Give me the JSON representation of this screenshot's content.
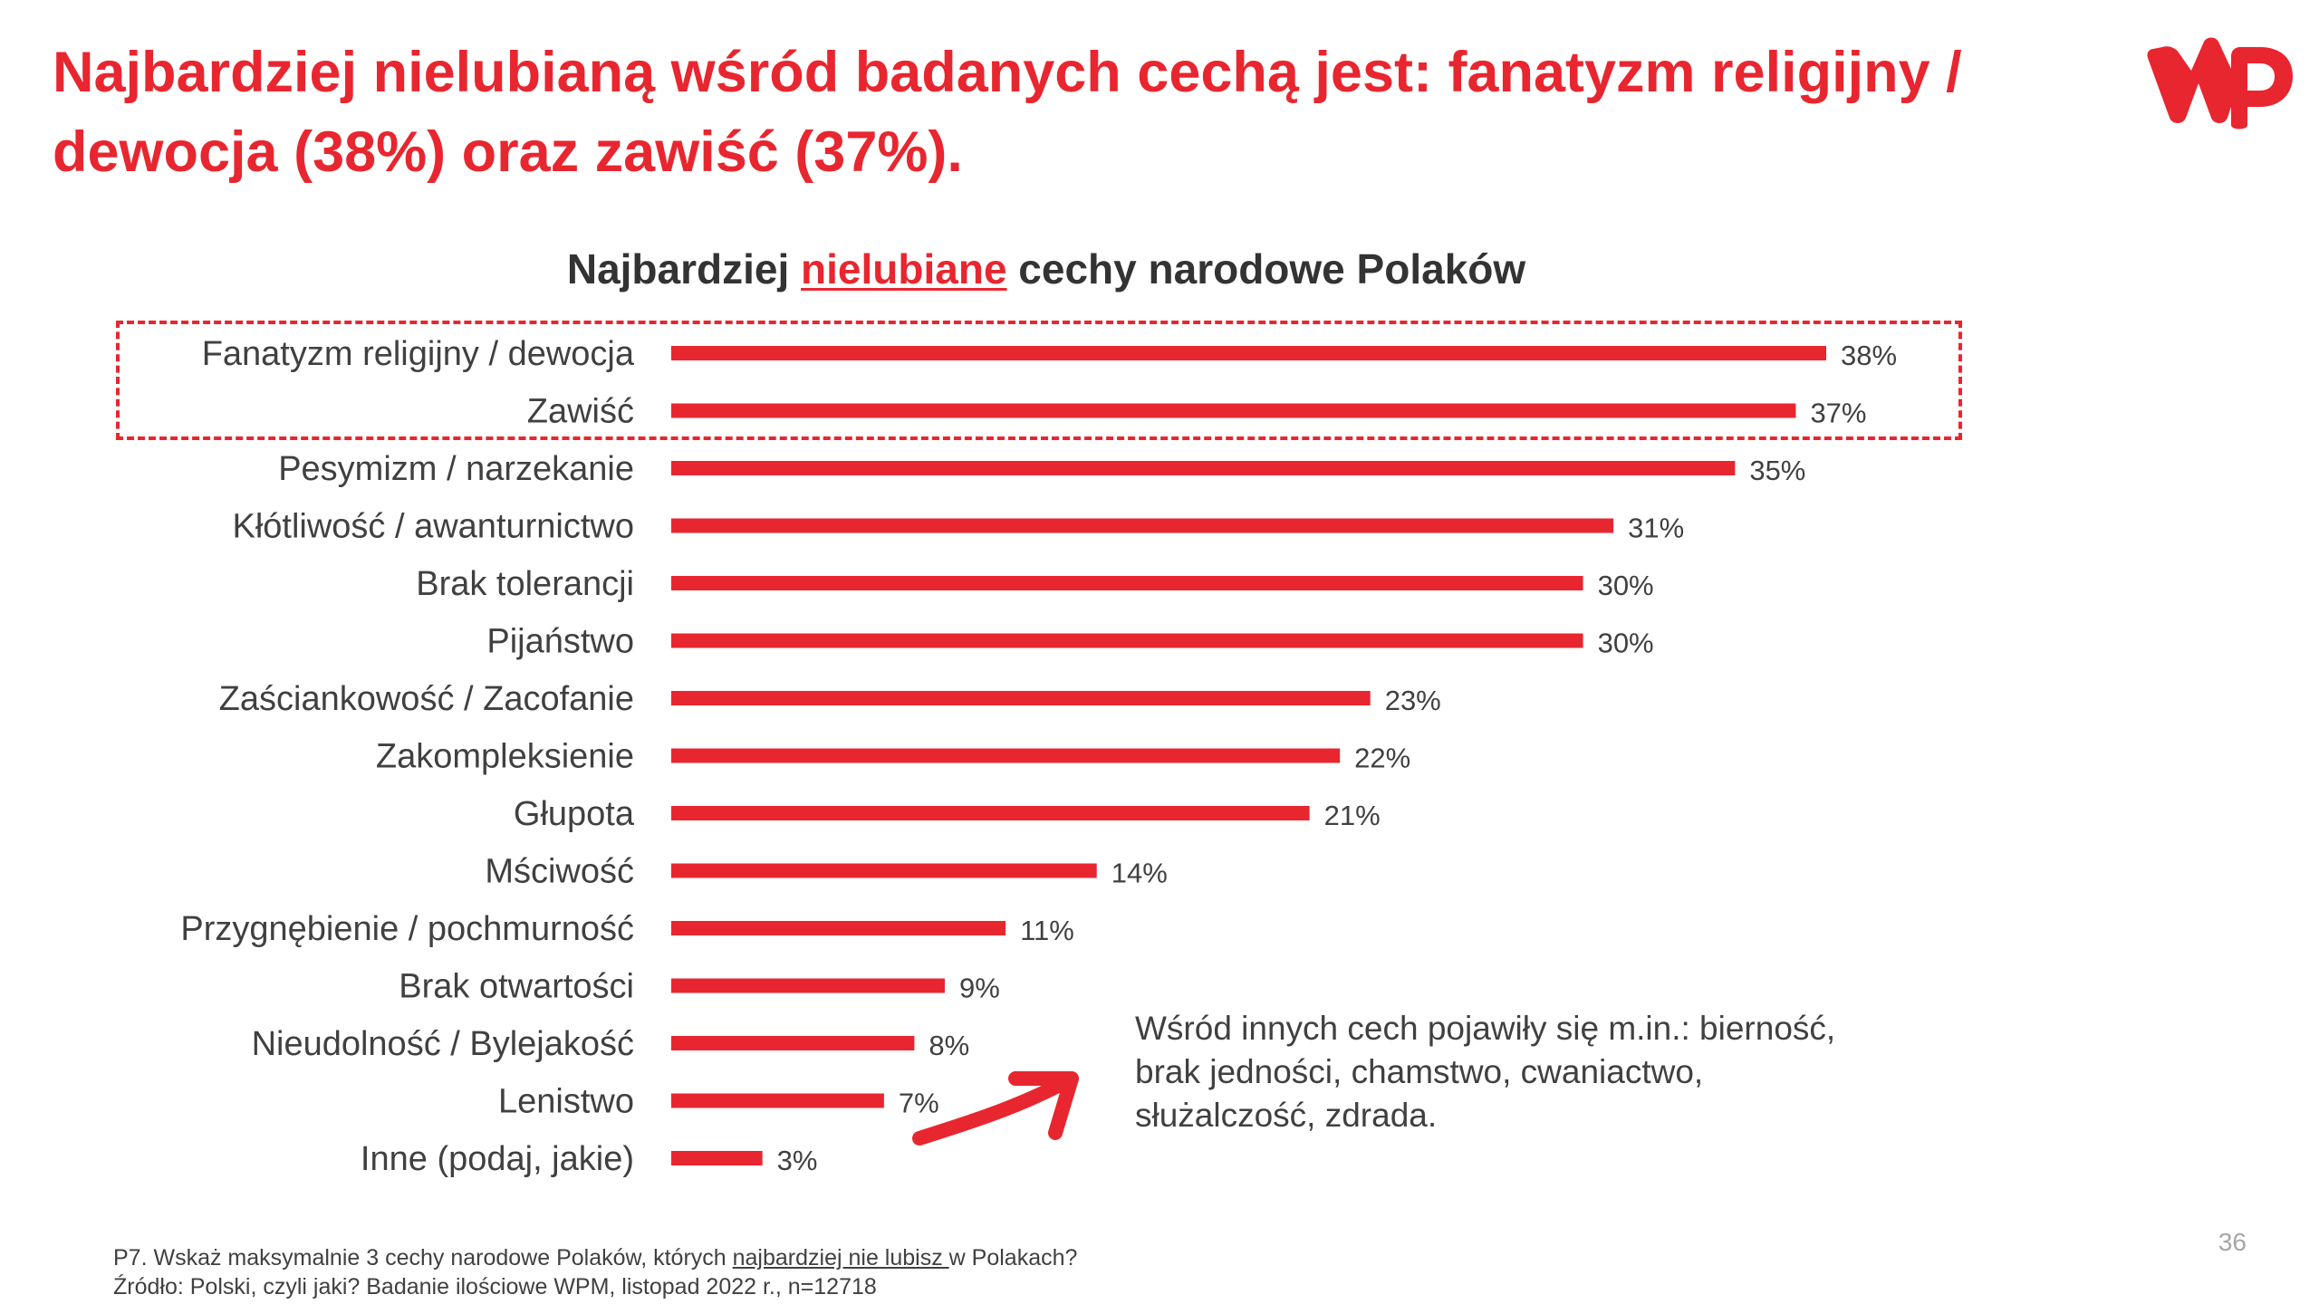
{
  "headline": {
    "line1": "Najbardziej nielubianą wśród badanych cechą jest: fanatyzm religijny /",
    "line2": "dewocja (38%) oraz zawiść (37%)."
  },
  "logo": {
    "text": "WP"
  },
  "colors": {
    "accent": "#e8262f",
    "text": "#404040",
    "muted": "#a6a6a6"
  },
  "chart_data": {
    "type": "bar",
    "orientation": "horizontal",
    "title_prefix": "Najbardziej ",
    "title_highlight": "nielubiane",
    "title_suffix": " cechy narodowe Polaków",
    "categories": [
      "Fanatyzm religijny / dewocja",
      "Zawiść",
      "Pesymizm / narzekanie",
      "Kłótliwość / awanturnictwo",
      "Brak tolerancji",
      "Pijaństwo",
      "Zaściankowość / Zacofanie",
      "Zakompleksienie",
      "Głupota",
      "Mściwość",
      "Przygnębienie / pochmurność",
      "Brak otwartości",
      "Nieudolność / Bylejakość",
      "Lenistwo",
      "Inne (podaj, jakie)"
    ],
    "values": [
      38,
      37,
      35,
      31,
      30,
      30,
      23,
      22,
      21,
      14,
      11,
      9,
      8,
      7,
      3
    ],
    "value_labels": [
      "38%",
      "37%",
      "35%",
      "31%",
      "30%",
      "30%",
      "23%",
      "22%",
      "21%",
      "14%",
      "11%",
      "9%",
      "8%",
      "7%",
      "3%"
    ],
    "highlighted": [
      "Fanatyzm religijny / dewocja",
      "Zawiść"
    ],
    "xlim": [
      0,
      38
    ],
    "grid": false,
    "legend": "none"
  },
  "note": {
    "lines": [
      "Wśród innych cech pojawiły się m.in.: bierność,",
      "brak jedności, chamstwo, cwaniactwo,",
      "służalczość, zdrada."
    ]
  },
  "footer": {
    "q_prefix": "P7. Wskaż maksymalnie 3 cechy narodowe Polaków, których ",
    "q_underlined": "najbardziej nie lubisz ",
    "q_suffix": "w Polakach?",
    "source": "Źródło: Polski, czyli jaki? Badanie ilościowe WPM, listopad 2022 r., n=12718"
  },
  "page_number": "36"
}
